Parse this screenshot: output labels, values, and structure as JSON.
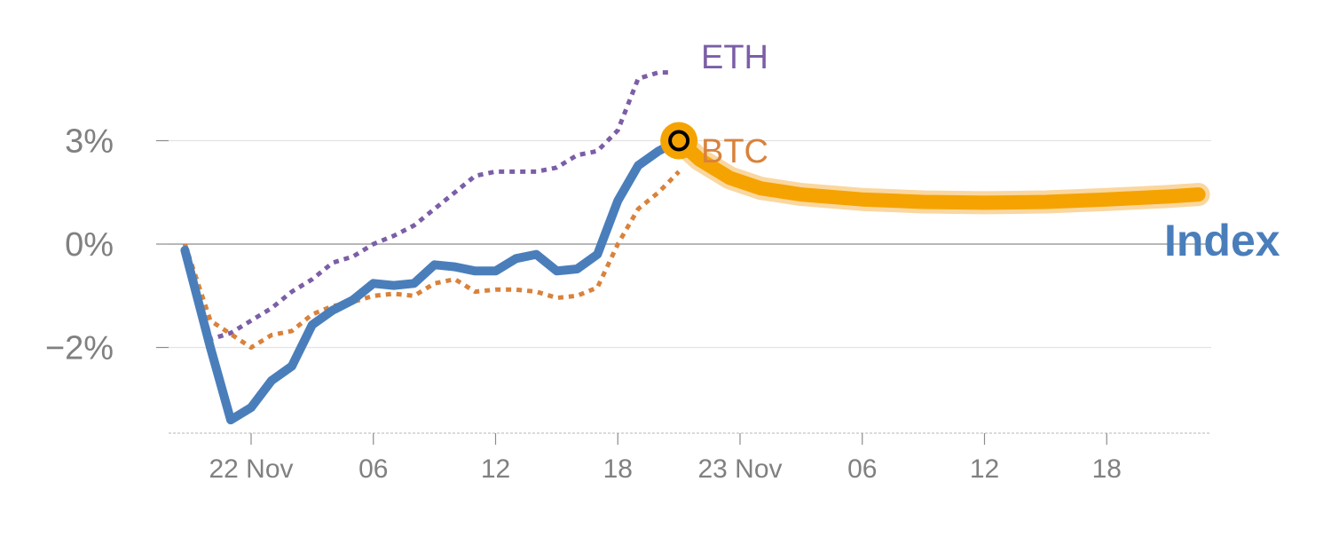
{
  "chart_data": {
    "type": "line",
    "title": "",
    "xlabel": "",
    "ylabel": "",
    "grid": true,
    "x_range": [
      -0.07,
      2.0
    ],
    "y_range": [
      -0.045,
      0.045
    ],
    "x_ticks": [
      {
        "value": 0.0,
        "label": "22 Nov"
      },
      {
        "value": 0.25,
        "label": "06"
      },
      {
        "value": 0.5,
        "label": "12"
      },
      {
        "value": 0.75,
        "label": "18"
      },
      {
        "value": 1.0,
        "label": "23 Nov"
      },
      {
        "value": 1.25,
        "label": "06"
      },
      {
        "value": 1.5,
        "label": "12"
      },
      {
        "value": 1.75,
        "label": "18"
      }
    ],
    "y_ticks": [
      {
        "value": 0.025,
        "label": "3%"
      },
      {
        "value": 0.0,
        "label": "0%"
      },
      {
        "value": -0.025,
        "label": "−2%"
      }
    ],
    "series": [
      {
        "name": "ETH",
        "style": "dotted",
        "color": "#7b5ea7",
        "x": [
          -0.1354,
          -0.1042,
          -0.0833,
          -0.0417,
          0,
          0.0417,
          0.0833,
          0.125,
          0.1667,
          0.2083,
          0.25,
          0.2917,
          0.3333,
          0.375,
          0.4167,
          0.4583,
          0.5,
          0.5417,
          0.5833,
          0.625,
          0.6667,
          0.7083,
          0.75,
          0.7917,
          0.8333,
          0.8542
        ],
        "values": [
          0.0,
          -0.013,
          -0.023,
          -0.0215,
          -0.0185,
          -0.0155,
          -0.0115,
          -0.0085,
          -0.0045,
          -0.003,
          0.0,
          0.002,
          0.0045,
          0.0085,
          0.0125,
          0.0165,
          0.0175,
          0.0175,
          0.0175,
          0.0185,
          0.0215,
          0.0225,
          0.0275,
          0.04,
          0.0415,
          0.0415
        ]
      },
      {
        "name": "BTC",
        "style": "dotted",
        "color": "#d9823b",
        "x": [
          -0.1354,
          -0.0833,
          0,
          0.0417,
          0.0833,
          0.125,
          0.1667,
          0.2083,
          0.25,
          0.2917,
          0.3333,
          0.375,
          0.4167,
          0.4583,
          0.5,
          0.5417,
          0.5833,
          0.625,
          0.6667,
          0.7083,
          0.75,
          0.7917,
          0.8333,
          0.875
        ],
        "values": [
          0.0,
          -0.0185,
          -0.025,
          -0.022,
          -0.021,
          -0.017,
          -0.015,
          -0.014,
          -0.0125,
          -0.012,
          -0.0125,
          -0.0095,
          -0.0085,
          -0.0115,
          -0.011,
          -0.011,
          -0.0115,
          -0.013,
          -0.0125,
          -0.0105,
          0.0,
          0.0085,
          0.0125,
          0.0175
        ]
      },
      {
        "name": "Index",
        "style": "solid",
        "color": "#4a7ebb",
        "x": [
          -0.1354,
          -0.0833,
          -0.0417,
          0,
          0.0417,
          0.0833,
          0.125,
          0.1667,
          0.2083,
          0.25,
          0.2917,
          0.3333,
          0.375,
          0.4167,
          0.4583,
          0.5,
          0.5417,
          0.5833,
          0.625,
          0.6667,
          0.7083,
          0.75,
          0.7917,
          0.8333,
          0.875
        ],
        "values": [
          -0.0015,
          -0.025,
          -0.0425,
          -0.0395,
          -0.033,
          -0.0295,
          -0.0195,
          -0.016,
          -0.0135,
          -0.0095,
          -0.01,
          -0.0095,
          -0.005,
          -0.0055,
          -0.0065,
          -0.0065,
          -0.0035,
          -0.0025,
          -0.0065,
          -0.006,
          -0.0025,
          0.0105,
          0.019,
          0.0225,
          0.025
        ]
      }
    ],
    "forecast": {
      "name": "Index",
      "color": "#f5a300",
      "x": [
        0.875,
        0.9167,
        0.9792,
        1.0417,
        1.125,
        1.25,
        1.375,
        1.5,
        1.625,
        1.75,
        1.875,
        1.9375
      ],
      "values": [
        0.025,
        0.0205,
        0.016,
        0.0135,
        0.012,
        0.0108,
        0.0102,
        0.01,
        0.0102,
        0.0108,
        0.0115,
        0.012
      ]
    },
    "marker": {
      "series": "Index",
      "x": 0.875,
      "value": 0.025
    },
    "legend": "inline labels at line ends"
  }
}
